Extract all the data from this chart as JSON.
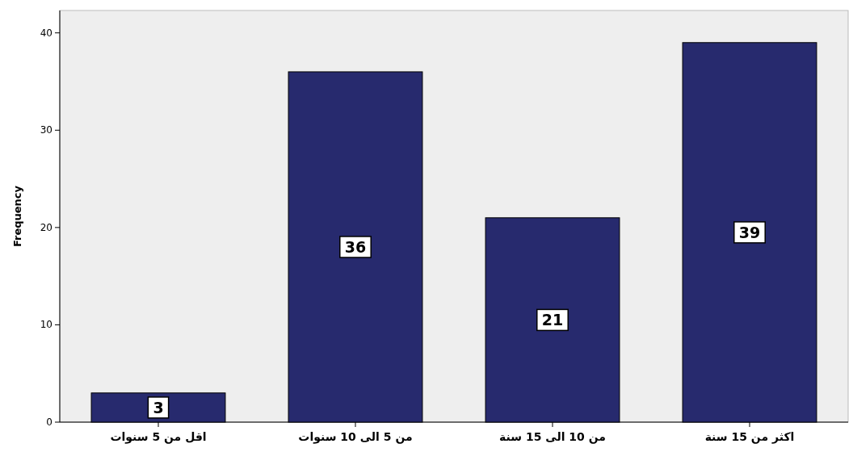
{
  "chart_data": {
    "type": "bar",
    "ylabel": "Frequency",
    "categories": [
      "اقل من 5 سنوات",
      "من 5 الى 10 سنوات",
      "من 10 الى 15 سنة",
      "اكثر من 15 سنة"
    ],
    "values": [
      3,
      36,
      21,
      39
    ],
    "color": "#272a6e",
    "ylim": [
      0,
      42.3
    ],
    "yticks": [
      0,
      10,
      20,
      30,
      40
    ],
    "data_labels": true,
    "grid": false
  }
}
